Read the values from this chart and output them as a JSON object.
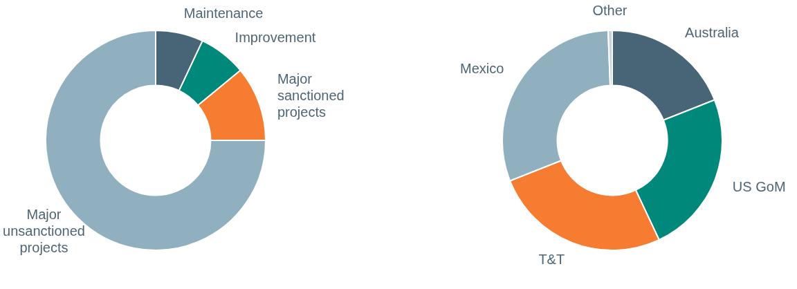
{
  "chart_data": [
    {
      "type": "donut",
      "categories": [
        "Maintenance",
        "Improvement",
        "Major sanctioned projects",
        "Major unsanctioned projects"
      ],
      "values": [
        7,
        7,
        11,
        75
      ],
      "colors": [
        "#486577",
        "#00897b",
        "#f57c30",
        "#91b0bf"
      ]
    },
    {
      "type": "donut",
      "categories": [
        "Australia",
        "US GoM",
        "T&T",
        "Mexico",
        "Other"
      ],
      "values": [
        19,
        24,
        26,
        30.4,
        0.6
      ],
      "colors": [
        "#486577",
        "#00897b",
        "#f57c30",
        "#91b0bf",
        "#c9d4da"
      ]
    }
  ]
}
